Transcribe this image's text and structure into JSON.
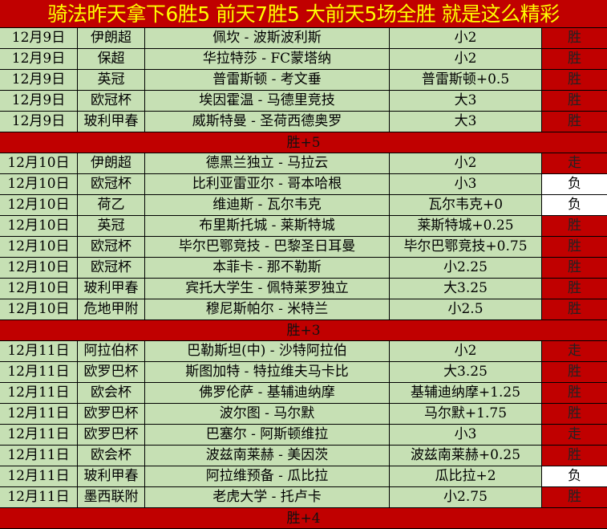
{
  "title": "骑法昨天拿下6胜5  前天7胜5  大前天5场全胜  就是这么精彩",
  "colors": {
    "header_bg": "#c00000",
    "title_text": "#ffff00",
    "row_bg": "#c6e0b4",
    "win_bg": "#c00000",
    "loss_bg": "#ffffff"
  },
  "groups": [
    {
      "rows": [
        {
          "date": "12月9日",
          "league": "伊朗超",
          "match": "佩坎 - 波斯波利斯",
          "pick": "小2",
          "result": "胜"
        },
        {
          "date": "12月9日",
          "league": "保超",
          "match": "华拉特莎 - FC蒙塔纳",
          "pick": "小2",
          "result": "胜"
        },
        {
          "date": "12月9日",
          "league": "英冠",
          "match": "普雷斯顿 - 考文垂",
          "pick": "普雷斯顿+0.5",
          "result": "胜"
        },
        {
          "date": "12月9日",
          "league": "欧冠杯",
          "match": "埃因霍温 - 马德里竞技",
          "pick": "大3",
          "result": "胜"
        },
        {
          "date": "12月9日",
          "league": "玻利甲春",
          "match": "威斯特曼 - 圣荷西德奥罗",
          "pick": "大3",
          "result": "胜"
        }
      ],
      "summary": "胜+5"
    },
    {
      "rows": [
        {
          "date": "12月10日",
          "league": "伊朗超",
          "match": "德黑兰独立 - 马拉云",
          "pick": "小2",
          "result": "走"
        },
        {
          "date": "12月10日",
          "league": "欧冠杯",
          "match": "比利亚雷亚尔 - 哥本哈根",
          "pick": "小3",
          "result": "负"
        },
        {
          "date": "12月10日",
          "league": "荷乙",
          "match": "维迪斯 - 瓦尔韦克",
          "pick": "瓦尔韦克+0",
          "result": "负"
        },
        {
          "date": "12月10日",
          "league": "英冠",
          "match": "布里斯托城 - 莱斯特城",
          "pick": "莱斯特城+0.25",
          "result": "胜"
        },
        {
          "date": "12月10日",
          "league": "欧冠杯",
          "match": "毕尔巴鄂竞技 - 巴黎圣日耳曼",
          "pick": "毕尔巴鄂竞技+0.75",
          "result": "胜"
        },
        {
          "date": "12月10日",
          "league": "欧冠杯",
          "match": "本菲卡 - 那不勒斯",
          "pick": "小2.25",
          "result": "胜"
        },
        {
          "date": "12月10日",
          "league": "玻利甲春",
          "match": "宾托大学生 - 佩特莱罗独立",
          "pick": "大3.25",
          "result": "胜"
        },
        {
          "date": "12月10日",
          "league": "危地甲附",
          "match": "穆尼斯帕尔 - 米特兰",
          "pick": "小2.5",
          "result": "胜"
        }
      ],
      "summary": "胜+3"
    },
    {
      "rows": [
        {
          "date": "12月11日",
          "league": "阿拉伯杯",
          "match": "巴勒斯坦(中) - 沙特阿拉伯",
          "pick": "小2",
          "result": "走"
        },
        {
          "date": "12月11日",
          "league": "欧罗巴杯",
          "match": "斯图加特 - 特拉维夫马卡比",
          "pick": "大3.25",
          "result": "胜"
        },
        {
          "date": "12月11日",
          "league": "欧会杯",
          "match": "佛罗伦萨 - 基辅迪纳摩",
          "pick": "基辅迪纳摩+1.25",
          "result": "胜"
        },
        {
          "date": "12月11日",
          "league": "欧罗巴杯",
          "match": "波尔图 - 马尔默",
          "pick": "马尔默+1.75",
          "result": "胜"
        },
        {
          "date": "12月11日",
          "league": "欧罗巴杯",
          "match": "巴塞尔 - 阿斯顿维拉",
          "pick": "小3",
          "result": "走"
        },
        {
          "date": "12月11日",
          "league": "欧会杯",
          "match": "波兹南莱赫 - 美因茨",
          "pick": "波兹南莱赫+0.25",
          "result": "胜"
        },
        {
          "date": "12月11日",
          "league": "玻利甲春",
          "match": "阿拉维预备 - 瓜比拉",
          "pick": "瓜比拉+2",
          "result": "负"
        },
        {
          "date": "12月11日",
          "league": "墨西联附",
          "match": "老虎大学 - 托卢卡",
          "pick": "小2.75",
          "result": "胜"
        }
      ],
      "summary": "胜+4"
    }
  ]
}
